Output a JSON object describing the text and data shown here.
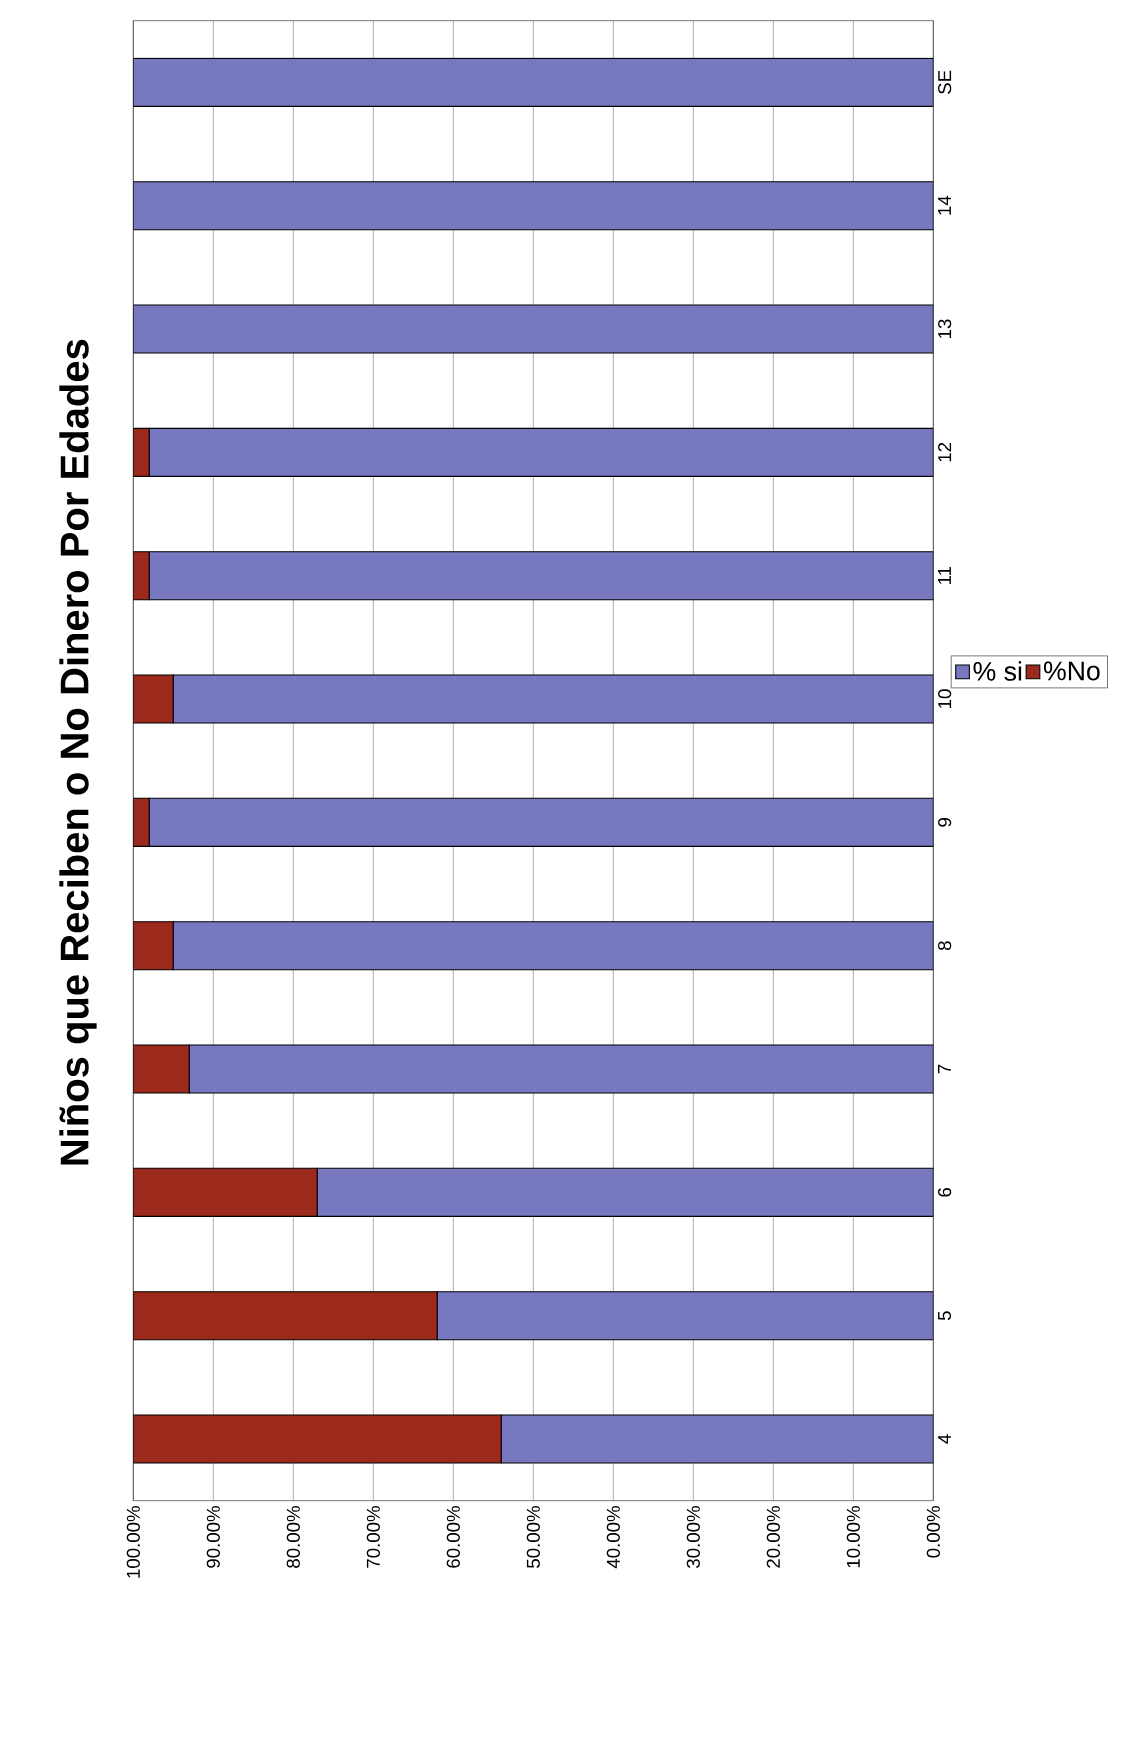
{
  "chart_data": {
    "type": "bar",
    "orientation": "horizontal",
    "stacked": true,
    "title": "Niños que Reciben o No Dinero Por Edades",
    "categories": [
      "SE",
      "14",
      "13",
      "12",
      "11",
      "10",
      "9",
      "8",
      "7",
      "6",
      "5",
      "4"
    ],
    "series": [
      {
        "name": "% si",
        "color": "#7878c0",
        "values": [
          100,
          100,
          100,
          98,
          98,
          95,
          98,
          95,
          93,
          77,
          62,
          54
        ]
      },
      {
        "name": "%No",
        "color": "#9c2a1c",
        "values": [
          0,
          0,
          0,
          2,
          2,
          5,
          2,
          5,
          7,
          23,
          38,
          46
        ]
      }
    ],
    "xlim": [
      100,
      0
    ],
    "xticks": [
      {
        "value": 100,
        "label": "100.00%"
      },
      {
        "value": 90,
        "label": "90.00%"
      },
      {
        "value": 80,
        "label": "80.00%"
      },
      {
        "value": 70,
        "label": "70.00%"
      },
      {
        "value": 60,
        "label": "60.00%"
      },
      {
        "value": 50,
        "label": "50.00%"
      },
      {
        "value": 40,
        "label": "40.00%"
      },
      {
        "value": 30,
        "label": "30.00%"
      },
      {
        "value": 20,
        "label": "20.00%"
      },
      {
        "value": 10,
        "label": "10.00%"
      },
      {
        "value": 0,
        "label": "0.00%"
      }
    ],
    "grid": true,
    "legend": "right"
  }
}
